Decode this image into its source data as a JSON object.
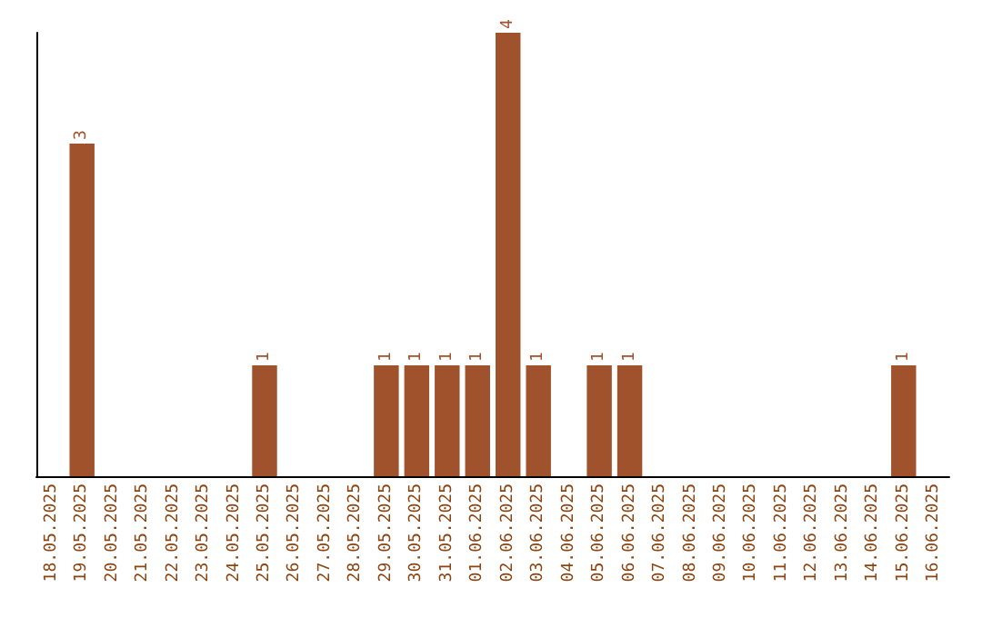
{
  "chart_data": {
    "type": "bar",
    "categories": [
      "18.05.2025",
      "19.05.2025",
      "20.05.2025",
      "21.05.2025",
      "22.05.2025",
      "23.05.2025",
      "24.05.2025",
      "25.05.2025",
      "26.05.2025",
      "27.05.2025",
      "28.05.2025",
      "29.05.2025",
      "30.05.2025",
      "31.05.2025",
      "01.06.2025",
      "02.06.2025",
      "03.06.2025",
      "04.06.2025",
      "05.06.2025",
      "06.06.2025",
      "07.06.2025",
      "08.06.2025",
      "09.06.2025",
      "10.06.2025",
      "11.06.2025",
      "12.06.2025",
      "13.06.2025",
      "14.06.2025",
      "15.06.2025",
      "16.06.2025"
    ],
    "values": [
      0,
      3,
      0,
      0,
      0,
      0,
      0,
      1,
      0,
      0,
      0,
      1,
      1,
      1,
      1,
      4,
      1,
      0,
      1,
      1,
      0,
      0,
      0,
      0,
      0,
      0,
      0,
      0,
      1,
      0
    ],
    "value_labels": [
      null,
      "3",
      null,
      null,
      null,
      null,
      null,
      "1",
      null,
      null,
      null,
      "1",
      "1",
      "1",
      "1",
      "4",
      "1",
      null,
      "1",
      "1",
      null,
      null,
      null,
      null,
      null,
      null,
      null,
      null,
      "1",
      null
    ],
    "color": "#a0522d"
  }
}
